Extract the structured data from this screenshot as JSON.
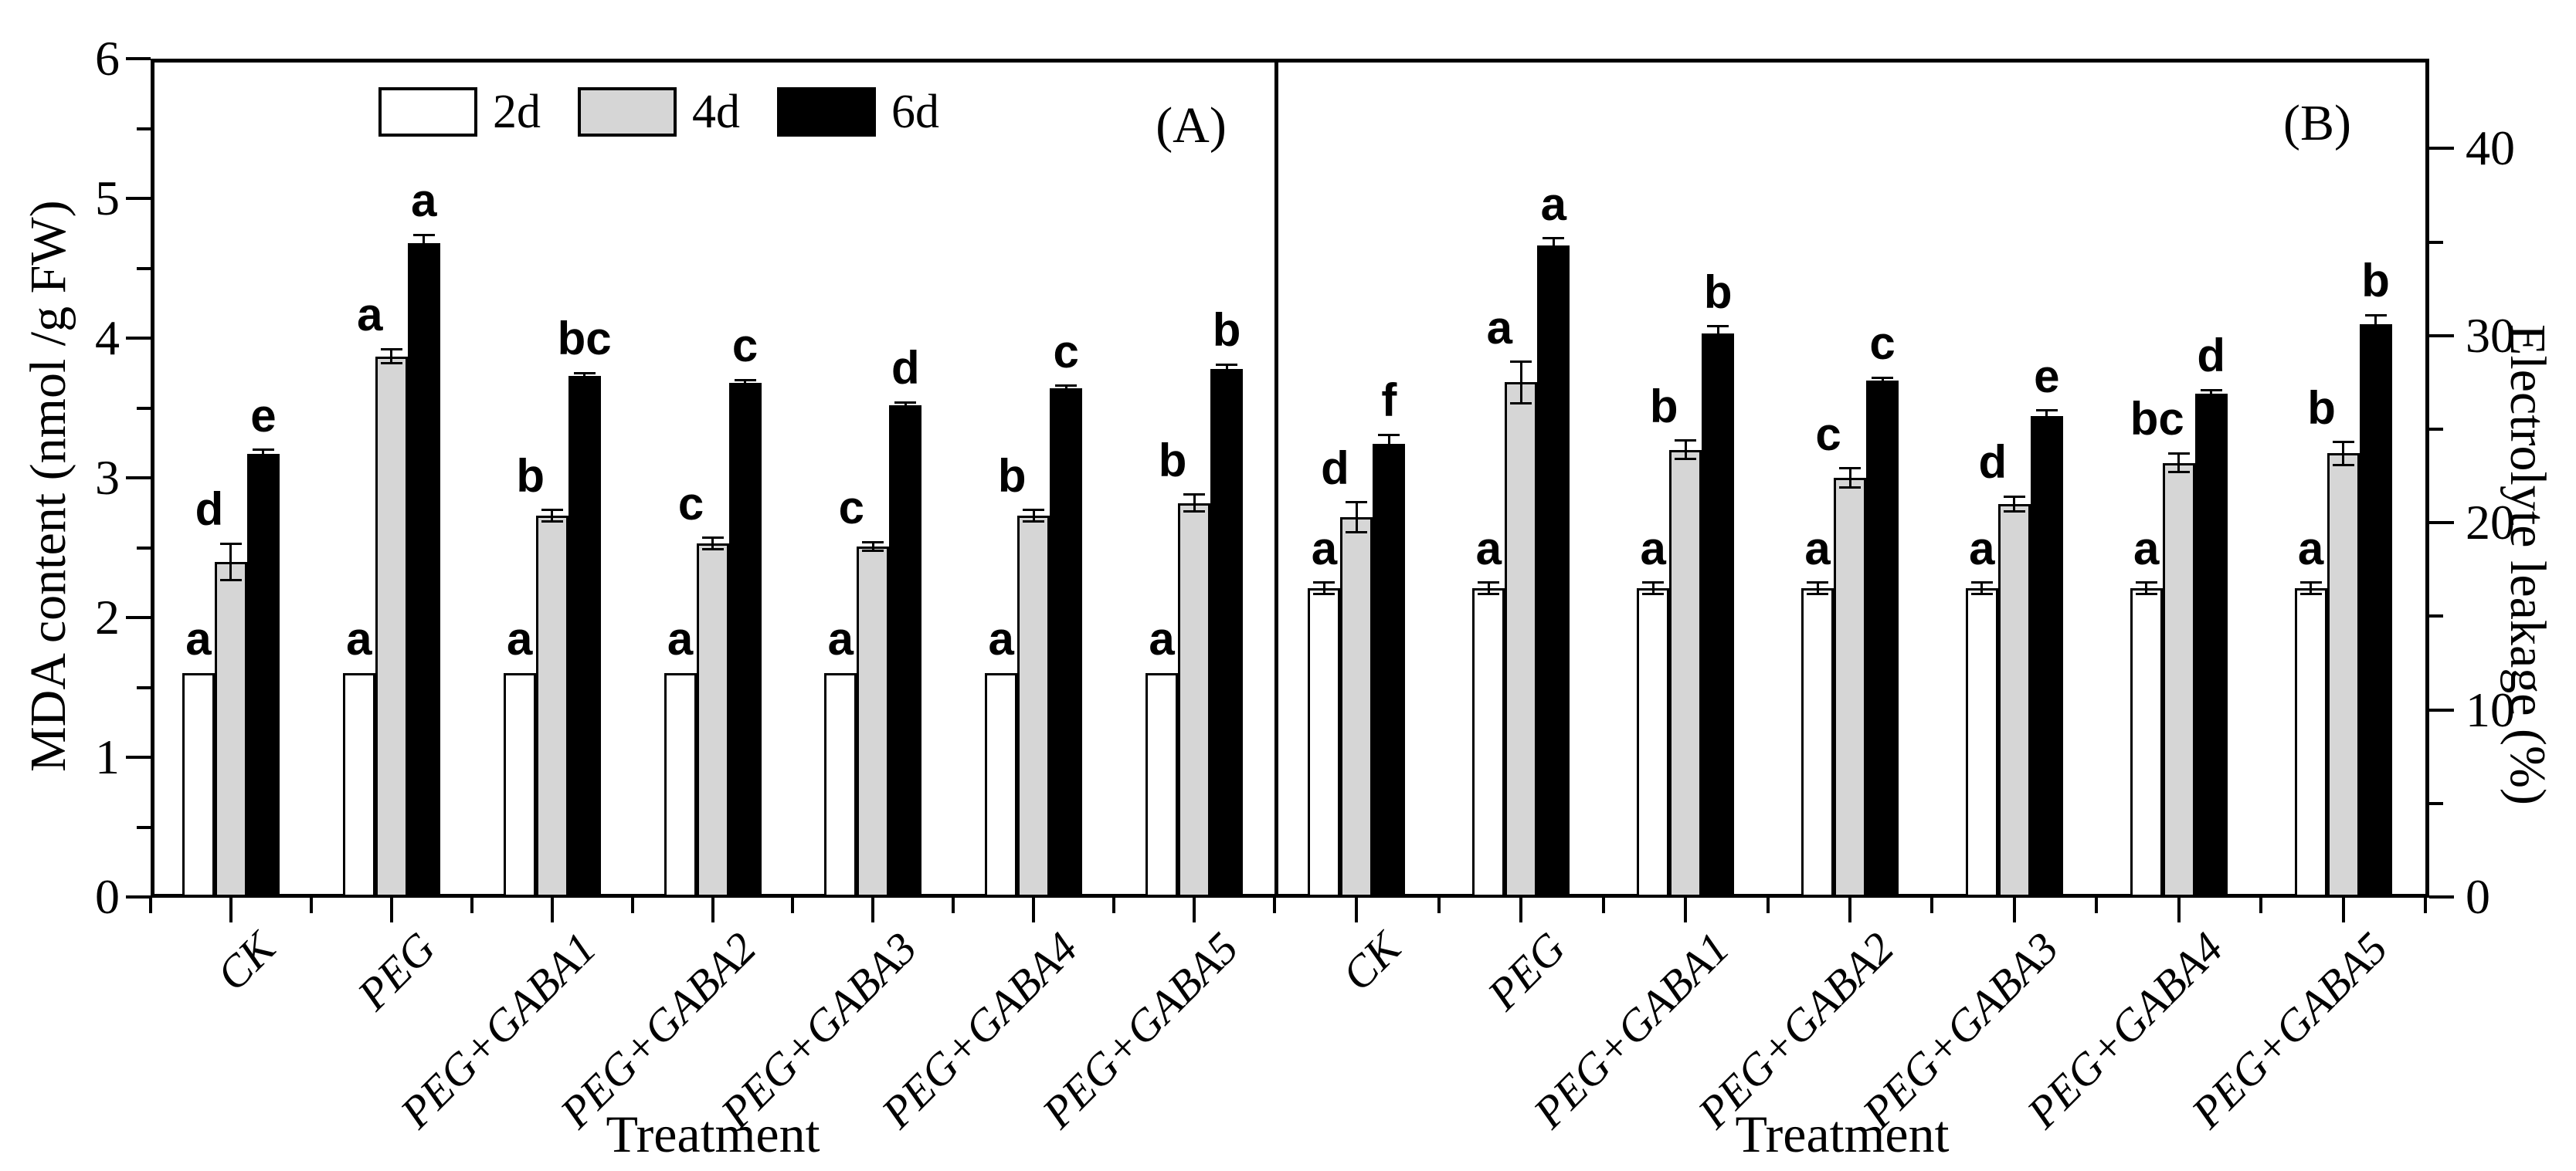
{
  "figure": {
    "background": "#ffffff",
    "accent_colors": {
      "bar_outline": "#000000",
      "gray_fill": "#d6d6d6",
      "white_fill": "#ffffff",
      "black_fill": "#000000"
    }
  },
  "legend": {
    "items": [
      {
        "label": "2d",
        "fill": "#ffffff"
      },
      {
        "label": "4d",
        "fill": "#d6d6d6"
      },
      {
        "label": "6d",
        "fill": "#000000"
      }
    ]
  },
  "chart_data": [
    {
      "panel": "A",
      "tag": "(A)",
      "type": "bar",
      "ylabel": "MDA content (nmol /g FW)",
      "xlabel": "Treatment",
      "axis_side": "left",
      "ylim": [
        0,
        6
      ],
      "yticks": [
        0,
        1,
        2,
        3,
        4,
        5,
        6
      ],
      "yticks_minor": [
        0.5,
        1.5,
        2.5,
        3.5,
        4.5,
        5.5
      ],
      "grid": false,
      "categories": [
        "CK",
        "PEG",
        "PEG+GABA1",
        "PEG+GABA2",
        "PEG+GABA3",
        "PEG+GABA4",
        "PEG+GABA5"
      ],
      "series": [
        {
          "name": "2d",
          "fill": "#ffffff",
          "values": [
            1.6,
            1.6,
            1.6,
            1.6,
            1.6,
            1.6,
            1.6
          ],
          "errors": [
            0,
            0,
            0,
            0,
            0,
            0,
            0
          ],
          "letters": [
            "a",
            "a",
            "a",
            "a",
            "a",
            "a",
            "a"
          ]
        },
        {
          "name": "4d",
          "fill": "#d6d6d6",
          "values": [
            2.4,
            3.87,
            2.73,
            2.53,
            2.51,
            2.73,
            2.82
          ],
          "errors": [
            0.13,
            0.05,
            0.04,
            0.04,
            0.03,
            0.04,
            0.06
          ],
          "letters": [
            "d",
            "a",
            "b",
            "c",
            "c",
            "b",
            "b"
          ]
        },
        {
          "name": "6d",
          "fill": "#000000",
          "values": [
            3.17,
            4.68,
            3.73,
            3.68,
            3.52,
            3.64,
            3.78
          ],
          "errors": [
            0.03,
            0.06,
            0.02,
            0.02,
            0.02,
            0.02,
            0.03
          ],
          "letters": [
            "e",
            "a",
            "bc",
            "c",
            "d",
            "c",
            "b"
          ]
        }
      ]
    },
    {
      "panel": "B",
      "tag": "(B)",
      "type": "bar",
      "ylabel": "Electrolyte leakage (%)",
      "xlabel": "Treatment",
      "axis_side": "right",
      "ylim": [
        0,
        44.8
      ],
      "yticks": [
        0,
        10,
        20,
        30,
        40
      ],
      "yticks_minor": [
        5,
        15,
        25,
        35
      ],
      "grid": false,
      "categories": [
        "CK",
        "PEG",
        "PEG+GABA1",
        "PEG+GABA2",
        "PEG+GABA3",
        "PEG+GABA4",
        "PEG+GABA5"
      ],
      "series": [
        {
          "name": "2d",
          "fill": "#ffffff",
          "values": [
            16.5,
            16.5,
            16.5,
            16.5,
            16.5,
            16.5,
            16.5
          ],
          "errors": [
            0.3,
            0.3,
            0.3,
            0.3,
            0.3,
            0.3,
            0.3
          ],
          "letters": [
            "a",
            "a",
            "a",
            "a",
            "a",
            "a",
            "a"
          ]
        },
        {
          "name": "4d",
          "fill": "#d6d6d6",
          "values": [
            20.3,
            27.5,
            23.9,
            22.4,
            21.0,
            23.2,
            23.7
          ],
          "errors": [
            0.8,
            1.1,
            0.5,
            0.5,
            0.4,
            0.5,
            0.6
          ],
          "letters": [
            "d",
            "a",
            "b",
            "c",
            "d",
            "bc",
            "b"
          ]
        },
        {
          "name": "6d",
          "fill": "#000000",
          "values": [
            24.2,
            34.8,
            30.1,
            27.6,
            25.7,
            26.9,
            30.6
          ],
          "errors": [
            0.5,
            0.4,
            0.4,
            0.15,
            0.3,
            0.2,
            0.5
          ],
          "letters": [
            "f",
            "a",
            "b",
            "c",
            "e",
            "d",
            "b"
          ]
        }
      ]
    }
  ]
}
